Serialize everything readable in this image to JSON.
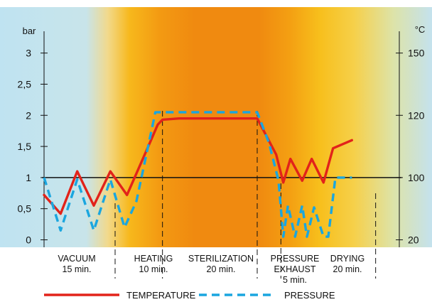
{
  "chart_data": {
    "type": "line",
    "left_axis_unit": "bar",
    "right_axis_unit": "°C",
    "left_ticks": [
      "0",
      "0,5",
      "1",
      "1,5",
      "2",
      "2,5",
      "3"
    ],
    "left_tick_values": [
      0,
      0.5,
      1,
      1.5,
      2,
      2.5,
      3
    ],
    "right_ticks": [
      "20",
      "100",
      "120",
      "150"
    ],
    "right_tick_values": [
      0,
      1,
      2,
      3
    ],
    "ylim": [
      -0.12,
      3.35
    ],
    "xlim": [
      0,
      75
    ],
    "phases": [
      {
        "line1": "VACUUM",
        "line2": "15 min.",
        "start": 0,
        "end": 15
      },
      {
        "line1": "HEATING",
        "line2": "10 min.",
        "start": 15,
        "end": 25
      },
      {
        "line1": "STERILIZATION",
        "line2": "20 min.",
        "start": 25,
        "end": 45
      },
      {
        "line1": "PRESSURE",
        "line2": "EXHAUST",
        "line3": "5 min.",
        "start": 45,
        "end": 50
      },
      {
        "line1": "DRYING",
        "line2": "20 min.",
        "start": 50,
        "end": 70
      }
    ],
    "series": [
      {
        "name": "TEMPERATURE",
        "color": "#e2231a",
        "style": "solid",
        "x": [
          0,
          3.5,
          7,
          10.5,
          14,
          17.5,
          22,
          24,
          25,
          28.5,
          34,
          45,
          49,
          50.5,
          52,
          54.5,
          56.5,
          59,
          61,
          65
        ],
        "y": [
          0.72,
          0.42,
          1.1,
          0.55,
          1.1,
          0.72,
          1.5,
          1.85,
          1.93,
          1.95,
          1.95,
          1.95,
          1.37,
          0.92,
          1.3,
          0.95,
          1.3,
          0.92,
          1.47,
          1.6
        ]
      },
      {
        "name": "PRESSURE",
        "color": "#1aa6df",
        "style": "dashed",
        "x": [
          0,
          3.5,
          7,
          10.5,
          14,
          17,
          19.5,
          23.5,
          25,
          28,
          34,
          40,
          45,
          47.5,
          49.5,
          50.5,
          51.5,
          53,
          54.5,
          55.5,
          57,
          59,
          60,
          61.5,
          65
        ],
        "y": [
          1.0,
          0.15,
          0.97,
          0.15,
          0.97,
          0.2,
          0.62,
          2.05,
          2.05,
          2.05,
          2.05,
          2.05,
          2.05,
          1.55,
          0.95,
          0.05,
          0.55,
          0.05,
          0.55,
          0.05,
          0.52,
          0.05,
          0.05,
          1.0,
          1.0
        ]
      }
    ]
  }
}
